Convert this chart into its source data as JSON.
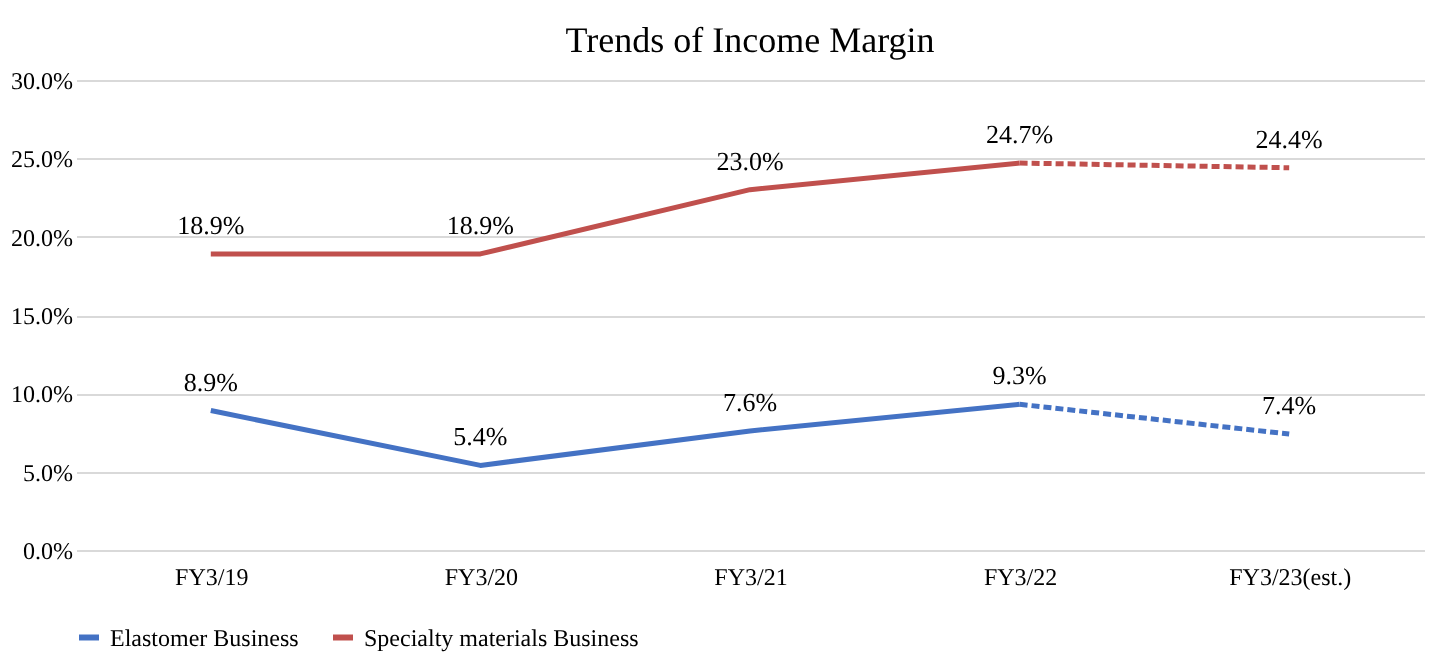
{
  "chart_data": {
    "type": "line",
    "title": "Trends of Income Margin",
    "categories": [
      "FY3/19",
      "FY3/20",
      "FY3/21",
      "FY3/22",
      "FY3/23(est.)"
    ],
    "series": [
      {
        "name": "Elastomer Business",
        "color": "#4472c4",
        "values": [
          8.9,
          5.4,
          7.6,
          9.3,
          null
        ],
        "value_labels": [
          "8.9%",
          "5.4%",
          "7.6%",
          "9.3%",
          null
        ],
        "line_style": "solid"
      },
      {
        "name": "Specialty materials Business",
        "color": "#c0504d",
        "values": [
          18.9,
          18.9,
          23.0,
          24.7,
          null
        ],
        "value_labels": [
          "18.9%",
          "18.9%",
          "23.0%",
          "24.7%",
          null
        ],
        "line_style": "solid"
      },
      {
        "color": "#4472c4",
        "values": [
          null,
          null,
          null,
          9.3,
          7.4
        ],
        "value_labels": [
          null,
          null,
          null,
          null,
          "7.4%"
        ],
        "line_style": "dashed"
      },
      {
        "color": "#c0504d",
        "values": [
          null,
          null,
          null,
          24.7,
          24.4
        ],
        "value_labels": [
          null,
          null,
          null,
          null,
          "24.4%"
        ],
        "line_style": "dashed"
      }
    ],
    "ylim": [
      0,
      30
    ],
    "yticks": [
      {
        "value": 0,
        "label": "0.0%"
      },
      {
        "value": 5,
        "label": "5.0%"
      },
      {
        "value": 10,
        "label": "10.0%"
      },
      {
        "value": 15,
        "label": "15.0%"
      },
      {
        "value": 20,
        "label": "20.0%"
      },
      {
        "value": 25,
        "label": "25.0%"
      },
      {
        "value": 30,
        "label": "30.0%"
      }
    ],
    "grid": "y",
    "legend": "bottom",
    "marker": "none"
  }
}
